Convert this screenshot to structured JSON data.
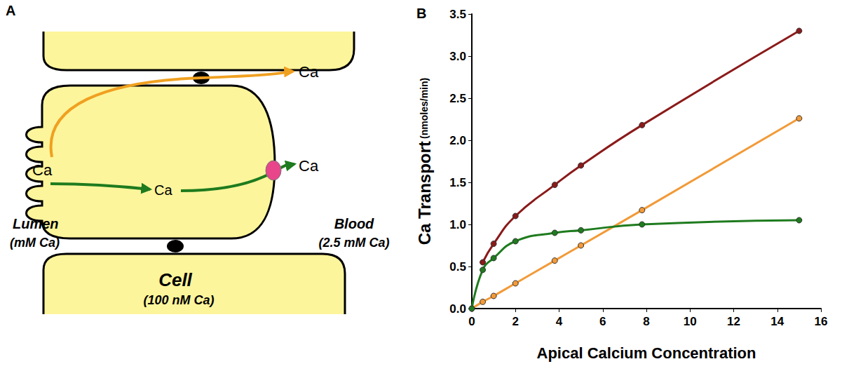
{
  "diagram": {
    "panel_label": "A",
    "ion": "Ca",
    "lumen": "Lumen",
    "lumen_conc": "(mM Ca)",
    "blood": "Blood",
    "blood_conc": "(2.5 mM Ca)",
    "cell": "Cell",
    "cell_conc": "(100 nM Ca)"
  },
  "chart_data": {
    "panel_label": "B",
    "type": "line",
    "xlabel": "Apical Calcium Concentration",
    "ylabel": "Ca Transport (nmoles/min)",
    "x": [
      0,
      0.5,
      1,
      2,
      3.8,
      5,
      7.8,
      15
    ],
    "series": [
      {
        "color": "#8b1a1a",
        "values": [
          null,
          0.55,
          0.77,
          1.1,
          1.47,
          1.7,
          2.18,
          3.3
        ]
      },
      {
        "color": "#f29a38",
        "values": [
          0,
          0.08,
          0.15,
          0.3,
          0.57,
          0.75,
          1.17,
          2.26
        ]
      },
      {
        "color": "#1e7b1e",
        "values": [
          0,
          0.46,
          0.6,
          0.8,
          0.9,
          0.93,
          1.0,
          1.05
        ]
      }
    ],
    "xlim": [
      0,
      16
    ],
    "xticks": [
      0,
      2,
      4,
      6,
      8,
      10,
      12,
      14,
      16
    ],
    "ylim": [
      0,
      3.5
    ],
    "yticks": [
      {
        "value": 0,
        "label": "0.0"
      },
      0.5,
      {
        "value": 1,
        "label": "1.0"
      },
      1.5,
      {
        "value": 2,
        "label": "2.0"
      },
      2.5,
      {
        "value": 3,
        "label": "3.0"
      },
      3.5
    ],
    "grid": false,
    "marker": "circle"
  }
}
